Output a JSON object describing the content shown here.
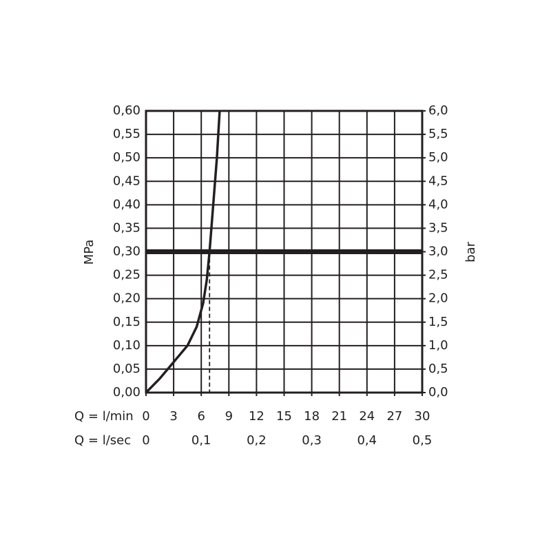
{
  "chart_data": {
    "type": "line",
    "y_label": "MPa",
    "y2_label": "bar",
    "x_row_label": "Q = l/min",
    "x2_row_label": "Q = l/sec",
    "xlim": [
      0,
      30
    ],
    "xticks": [
      0,
      3,
      6,
      9,
      12,
      15,
      18,
      21,
      24,
      27,
      30
    ],
    "x2lim": [
      0,
      0.5
    ],
    "x2ticks": [
      0,
      {
        "value": 0.1,
        "label": "0,1"
      },
      {
        "value": 0.2,
        "label": "0,2"
      },
      {
        "value": 0.3,
        "label": "0,3"
      },
      {
        "value": 0.4,
        "label": "0,4"
      },
      {
        "value": 0.5,
        "label": "0,5"
      }
    ],
    "ylim": [
      0,
      0.6
    ],
    "yticks": [
      {
        "value": 0,
        "label": "0,00"
      },
      {
        "value": 0.05,
        "label": "0,05"
      },
      {
        "value": 0.1,
        "label": "0,10"
      },
      {
        "value": 0.15,
        "label": "0,15"
      },
      {
        "value": 0.2,
        "label": "0,20"
      },
      {
        "value": 0.25,
        "label": "0,25"
      },
      {
        "value": 0.3,
        "label": "0,30"
      },
      {
        "value": 0.35,
        "label": "0,35"
      },
      {
        "value": 0.4,
        "label": "0,40"
      },
      {
        "value": 0.45,
        "label": "0,45"
      },
      {
        "value": 0.5,
        "label": "0,50"
      },
      {
        "value": 0.55,
        "label": "0,55"
      },
      {
        "value": 0.6,
        "label": "0,60"
      }
    ],
    "y2lim": [
      0,
      6
    ],
    "y2ticks": [
      {
        "value": 0,
        "label": "0,0"
      },
      {
        "value": 0.5,
        "label": "0,5"
      },
      {
        "value": 1,
        "label": "1,0"
      },
      {
        "value": 1.5,
        "label": "1,5"
      },
      {
        "value": 2,
        "label": "2,0"
      },
      {
        "value": 2.5,
        "label": "2,5"
      },
      {
        "value": 3,
        "label": "3,0"
      },
      {
        "value": 3.5,
        "label": "3,5"
      },
      {
        "value": 4,
        "label": "4,0"
      },
      {
        "value": 4.5,
        "label": "4,5"
      },
      {
        "value": 5,
        "label": "5,0"
      },
      {
        "value": 5.5,
        "label": "5,5"
      },
      {
        "value": 6,
        "label": "6,0"
      }
    ],
    "grid": true,
    "series": [
      {
        "color": "#231f20",
        "x": [
          0,
          1.5,
          3,
          4.5,
          5.5,
          6.2,
          6.6,
          6.9,
          7.3,
          7.7,
          8.0
        ],
        "values": [
          0,
          0.03,
          0.065,
          0.1,
          0.14,
          0.19,
          0.24,
          0.3,
          0.4,
          0.5,
          0.6
        ]
      }
    ],
    "reference": {
      "y": 0.3,
      "x": 6.9
    }
  }
}
